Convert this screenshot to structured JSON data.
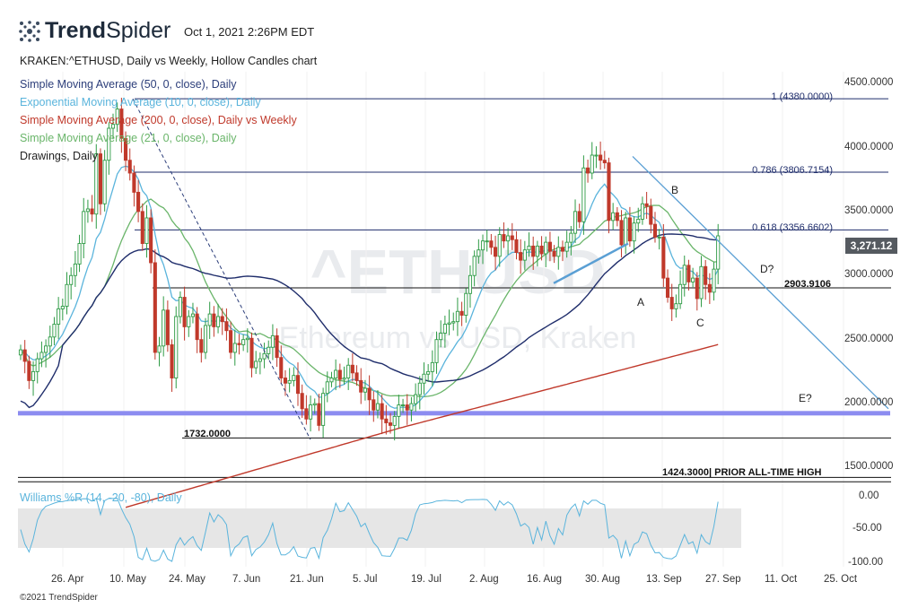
{
  "brand": {
    "name_bold": "Trend",
    "name_light": "Spider"
  },
  "timestamp": "Oct 1, 2021 2:26PM EDT",
  "chart_title": "KRAKEN:^ETHUSD, Daily vs Weekly, Hollow Candles chart",
  "legend": [
    {
      "label": "Simple Moving Average (50, 0, close), Daily",
      "color": "#2c3e7a"
    },
    {
      "label": "Exponential Moving Average (10, 0, close), Daily",
      "color": "#5ab4dc"
    },
    {
      "label": "Simple Moving Average (200, 0, close), Daily vs Weekly",
      "color": "#c0392b"
    },
    {
      "label": "Simple Moving Average (21, 0, close), Daily",
      "color": "#6ab56a"
    },
    {
      "label": "Drawings, Daily",
      "color": "#222222"
    }
  ],
  "watermark": {
    "symbol": "^ETHUSD",
    "name": "Ethereum vs USD, Kraken"
  },
  "price_axis": {
    "labels": [
      "4500.0000",
      "4000.0000",
      "3500.0000",
      "3000.0000",
      "2500.0000",
      "2000.0000",
      "1500.0000"
    ]
  },
  "current_price": "3,271.12",
  "annotations": {
    "fib_1": "1 (4380.0000)",
    "fib_786": "0.786 (3806.7154)",
    "fib_618": "0.618 (3356.6602)",
    "level_2903": "2903.9106",
    "level_1732": "1732.0000",
    "prior_ath": "1424.3000| PRIOR ALL-TIME HIGH",
    "point_a": "A",
    "point_b": "B",
    "point_c": "C",
    "point_d": "D?",
    "point_e": "E?"
  },
  "indicator": {
    "label": "Williams %R (14, -20, -80), Daily",
    "axis_labels": [
      "0.00",
      "-50.00",
      "-100.00"
    ]
  },
  "x_axis": {
    "labels": [
      "26. Apr",
      "10. May",
      "24. May",
      "7. Jun",
      "21. Jun",
      "5. Jul",
      "19. Jul",
      "2. Aug",
      "16. Aug",
      "30. Aug",
      "13. Sep",
      "27. Sep",
      "11. Oct",
      "25. Oct"
    ]
  },
  "footer": "©2021 TrendSpider",
  "colors": {
    "up_candle": "#2e9b45",
    "down_candle": "#c0392b",
    "sma50": "#1f2d6b",
    "ema10": "#5ab4dc",
    "sma200": "#c0392b",
    "sma21": "#6ab56a",
    "support_band": "#8c8cf0",
    "trendline": "#5a9fd4"
  },
  "chart_data": {
    "type": "candlestick",
    "symbol": "KRAKEN:^ETHUSD",
    "x_start": "2021-04-16",
    "ylim": [
      1250,
      4750
    ],
    "closes": [
      2420,
      2330,
      2180,
      2250,
      2350,
      2400,
      2450,
      2520,
      2620,
      2740,
      2760,
      2930,
      3000,
      3090,
      3250,
      3500,
      3520,
      3480,
      3950,
      3560,
      3900,
      4150,
      4180,
      4300,
      4070,
      3900,
      3800,
      3650,
      3500,
      3250,
      3450,
      3100,
      2400,
      2450,
      2730,
      2460,
      2200,
      2680,
      2830,
      2600,
      2680,
      2700,
      2500,
      2400,
      2610,
      2700,
      2600,
      2680,
      2640,
      2570,
      2400,
      2470,
      2460,
      2500,
      2510,
      2280,
      2330,
      2350,
      2390,
      2440,
      2530,
      2360,
      2200,
      2160,
      2180,
      2220,
      2080,
      1960,
      1880,
      1990,
      2000,
      1830,
      2080,
      2170,
      2200,
      2260,
      2190,
      2200,
      2300,
      2240,
      2180,
      2090,
      2120,
      2030,
      1950,
      2000,
      1880,
      1850,
      1830,
      1900,
      1990,
      1990,
      1950,
      2000,
      2070,
      2160,
      2230,
      2250,
      2320,
      2500,
      2550,
      2620,
      2630,
      2640,
      2720,
      2690,
      2860,
      3000,
      3150,
      3200,
      3270,
      3270,
      3220,
      3150,
      3320,
      3270,
      3310,
      3280,
      3180,
      3120,
      3200,
      3230,
      3150,
      3230,
      3170,
      3260,
      3190,
      3150,
      3220,
      3190,
      3260,
      3330,
      3500,
      3420,
      3840,
      3800,
      3940,
      3940,
      3900,
      3880,
      3430,
      3490,
      3430,
      3240,
      3450,
      3270,
      3410,
      3440,
      3560,
      3540,
      3400,
      3300,
      3300,
      2980,
      2830,
      2740,
      2780,
      2930,
      3080,
      2950,
      2980,
      2820,
      3070,
      2930,
      2870,
      3050,
      3310
    ],
    "levels": [
      {
        "label": "1 (4380.0000)",
        "value": 4380
      },
      {
        "label": "0.786 (3806.7154)",
        "value": 3806.7154
      },
      {
        "label": "0.618 (3356.6602)",
        "value": 3356.6602
      },
      {
        "label": "2903.9106",
        "value": 2903.9106
      },
      {
        "label": "1732.0000",
        "value": 1732
      },
      {
        "label": "1424.3000| PRIOR ALL-TIME HIGH",
        "value": 1424.3
      }
    ],
    "support_band_value": 1925,
    "current_price": 3271.12,
    "williams_r_bands": [
      -20,
      -80
    ],
    "williams_r_range": [
      -100,
      0
    ]
  }
}
